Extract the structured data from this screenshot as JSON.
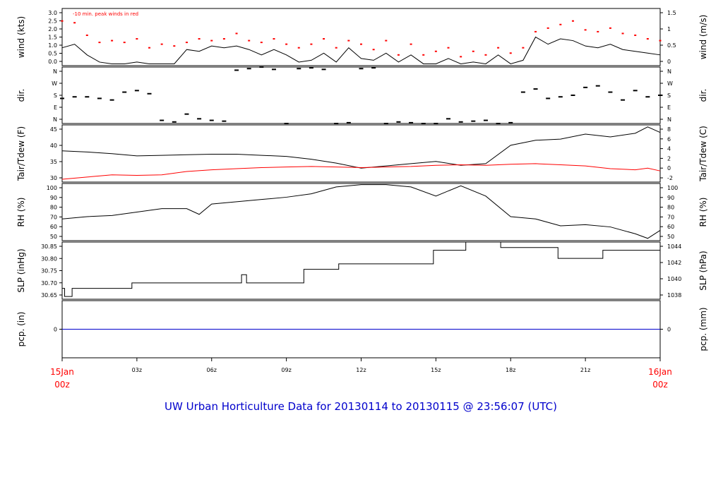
{
  "title": "UW Urban Horticulture Data for 20130114  to  20130115 @ 23:56:07  (UTC)",
  "peak_note": "-10 min. peak winds in red",
  "time_axis": {
    "ticks": [
      {
        "hour": 0,
        "label": "15Jan",
        "label2": "00z",
        "red": true
      },
      {
        "hour": 3,
        "label": "03z"
      },
      {
        "hour": 6,
        "label": "06z"
      },
      {
        "hour": 9,
        "label": "09z"
      },
      {
        "hour": 12,
        "label": "12z"
      },
      {
        "hour": 15,
        "label": "15z"
      },
      {
        "hour": 18,
        "label": "18z"
      },
      {
        "hour": 21,
        "label": "21z"
      },
      {
        "hour": 24,
        "label": "16Jan",
        "label2": "00z",
        "red": true
      }
    ]
  },
  "colors": {
    "main": "#000000",
    "peak": "#ff0000",
    "dew": "#ff0000",
    "precip": "#0000cc",
    "title": "#0000cc",
    "date": "#ff0000"
  },
  "chart_data": [
    {
      "type": "line",
      "ylabel": "wind (kts)",
      "ylabel_right": "wind (m/s)",
      "ylim": [
        0,
        3.2
      ],
      "left_ticks": [
        "0.0",
        "0.5",
        "1.0",
        "1.5",
        "2.0",
        "2.5",
        "3.0"
      ],
      "right_ticks": [
        "0",
        "0.5",
        "1",
        "1.5"
      ],
      "x": [
        0,
        0.5,
        1,
        1.5,
        2,
        2.5,
        3,
        3.5,
        4,
        4.5,
        5,
        5.5,
        6,
        6.5,
        7,
        7.5,
        8,
        8.5,
        9,
        9.5,
        10,
        10.5,
        11,
        11.5,
        12,
        12.5,
        13,
        13.5,
        14,
        14.5,
        15,
        15.5,
        16,
        16.5,
        17,
        17.5,
        18,
        18.5,
        19,
        19.5,
        20,
        20.5,
        21,
        21.5,
        22,
        22.5,
        23,
        23.5,
        24
      ],
      "series": [
        {
          "values": [
            1.0,
            1.2,
            0.6,
            0.2,
            0.1,
            0.1,
            0.2,
            0.1,
            0.1,
            0.1,
            0.9,
            0.8,
            1.1,
            1.0,
            1.1,
            0.9,
            0.6,
            0.9,
            0.6,
            0.2,
            0.3,
            0.7,
            0.2,
            1.0,
            0.4,
            0.3,
            0.7,
            0.2,
            0.6,
            0.1,
            0.1,
            0.4,
            0.1,
            0.2,
            0.1,
            0.6,
            0.1,
            0.3,
            1.6,
            1.2,
            1.5,
            1.4,
            1.1,
            1.0,
            1.2,
            0.9,
            0.8,
            0.7,
            0.6
          ],
          "color": "main"
        },
        {
          "values": [
            2.5,
            2.4,
            1.7,
            1.3,
            1.4,
            1.3,
            1.5,
            1.0,
            1.2,
            1.1,
            1.3,
            1.5,
            1.4,
            1.5,
            1.8,
            1.4,
            1.3,
            1.5,
            1.2,
            1.0,
            1.2,
            1.5,
            1.0,
            1.4,
            1.2,
            0.9,
            1.4,
            0.6,
            1.2,
            0.6,
            0.8,
            1.0,
            0.5,
            0.8,
            0.6,
            1.0,
            0.7,
            1.0,
            1.9,
            2.1,
            2.3,
            2.5,
            2.0,
            1.9,
            2.1,
            1.8,
            1.7,
            1.5,
            1.4
          ],
          "color": "peak",
          "points": true
        }
      ]
    },
    {
      "type": "scatter",
      "ylabel": "dir.",
      "ylabel_right": "dir.",
      "ylim": [
        0,
        360
      ],
      "left_ticks": [
        "N",
        "E",
        "S",
        "W",
        "N"
      ],
      "right_ticks": [
        "N",
        "E",
        "S",
        "W",
        "N"
      ],
      "x": [
        0,
        0.5,
        1,
        1.5,
        2,
        2.5,
        3,
        3.5,
        4,
        4.5,
        5,
        5.5,
        6,
        6.5,
        7,
        7.5,
        8,
        8.5,
        9,
        9.5,
        10,
        10.5,
        11,
        11.5,
        12,
        12.5,
        13,
        13.5,
        14,
        14.5,
        15,
        15.5,
        16,
        16.5,
        17,
        17.5,
        18,
        18.5,
        19,
        19.5,
        20,
        20.5,
        21,
        21.5,
        22,
        22.5,
        23,
        23.5,
        24
      ],
      "series": [
        {
          "values": [
            160,
            170,
            170,
            160,
            150,
            200,
            210,
            190,
            20,
            10,
            60,
            30,
            20,
            15,
            340,
            350,
            360,
            345,
            0,
            350,
            355,
            345,
            0,
            5,
            350,
            355,
            0,
            10,
            5,
            0,
            0,
            30,
            10,
            15,
            20,
            0,
            5,
            200,
            220,
            160,
            170,
            180,
            230,
            240,
            200,
            150,
            210,
            170,
            180
          ],
          "color": "main"
        }
      ]
    },
    {
      "type": "line",
      "ylabel": "Tair/Tdew (F)",
      "ylabel_right": "Tair/Tdew (C)",
      "ylim": [
        26,
        46.5
      ],
      "left_ticks": [
        "30",
        "35",
        "40",
        "45"
      ],
      "right_ticks": [
        "-2",
        "0",
        "2",
        "4",
        "6",
        "8"
      ],
      "x": [
        0,
        1,
        2,
        3,
        4,
        5,
        6,
        7,
        8,
        9,
        10,
        11,
        12,
        13,
        14,
        15,
        16,
        17,
        18,
        19,
        20,
        21,
        22,
        23,
        23.5,
        24
      ],
      "series": [
        {
          "name": "Tair",
          "values": [
            37.2,
            36.8,
            36.2,
            35.4,
            35.6,
            35.8,
            36.0,
            36.0,
            35.6,
            35.2,
            34.2,
            32.8,
            31.0,
            31.8,
            32.6,
            33.4,
            32.0,
            32.6,
            39.2,
            41.0,
            41.4,
            43.2,
            42.2,
            43.5,
            45.8,
            43.8
          ],
          "color": "main"
        },
        {
          "name": "Tdew",
          "values": [
            27.0,
            27.8,
            28.6,
            28.4,
            28.6,
            29.8,
            30.4,
            30.8,
            31.2,
            31.4,
            31.6,
            31.4,
            31.2,
            31.4,
            31.6,
            32.0,
            32.2,
            32.0,
            32.4,
            32.6,
            32.2,
            31.8,
            30.8,
            30.4,
            31.0,
            30.0
          ],
          "color": "dew"
        }
      ]
    },
    {
      "type": "line",
      "ylabel": "RH (%)",
      "ylabel_right": "RH (%)",
      "ylim": [
        50,
        100
      ],
      "left_ticks": [
        "50",
        "60",
        "70",
        "80",
        "90",
        "100"
      ],
      "right_ticks": [
        "50",
        "60",
        "70",
        "80",
        "90",
        "100"
      ],
      "x": [
        0,
        1,
        2,
        3,
        4,
        5,
        5.5,
        6,
        7,
        8,
        9,
        10,
        11,
        12,
        13,
        14,
        15,
        16,
        17,
        18,
        19,
        20,
        21,
        22,
        23,
        23.5,
        24
      ],
      "series": [
        {
          "values": [
            69,
            71,
            72,
            75,
            78,
            78,
            73,
            82,
            84,
            86,
            88,
            91,
            97,
            99,
            99,
            97,
            89,
            98,
            89,
            71,
            69,
            63,
            64,
            62,
            56,
            52,
            59
          ],
          "color": "main"
        }
      ]
    },
    {
      "type": "line",
      "ylabel": "SLP (inHg)",
      "ylabel_right": "SLP (hPa)",
      "ylim": [
        30.65,
        30.86
      ],
      "left_ticks": [
        "30.65",
        "30.70",
        "30.75",
        "30.80",
        "30.85"
      ],
      "right_ticks": [
        "1038",
        "1040",
        "1042",
        "1044"
      ],
      "x": [
        0,
        0.1,
        0.4,
        2.8,
        7.2,
        7.4,
        9.7,
        11.1,
        14.9,
        16.2,
        17.6,
        19.9,
        21.7,
        24
      ],
      "series": [
        {
          "values": [
            30.69,
            30.66,
            30.69,
            30.71,
            30.74,
            30.71,
            30.76,
            30.78,
            30.83,
            30.86,
            30.84,
            30.8,
            30.83,
            30.84
          ],
          "color": "main",
          "step": true
        }
      ]
    },
    {
      "type": "line",
      "ylabel": "pcp. (in)",
      "ylabel_right": "pcp. (mm)",
      "ylim": [
        -1,
        1
      ],
      "left_ticks": [
        "0"
      ],
      "right_ticks": [
        "0"
      ],
      "x": [
        0,
        24
      ],
      "series": [
        {
          "values": [
            0,
            0
          ],
          "color": "precip"
        }
      ]
    }
  ]
}
